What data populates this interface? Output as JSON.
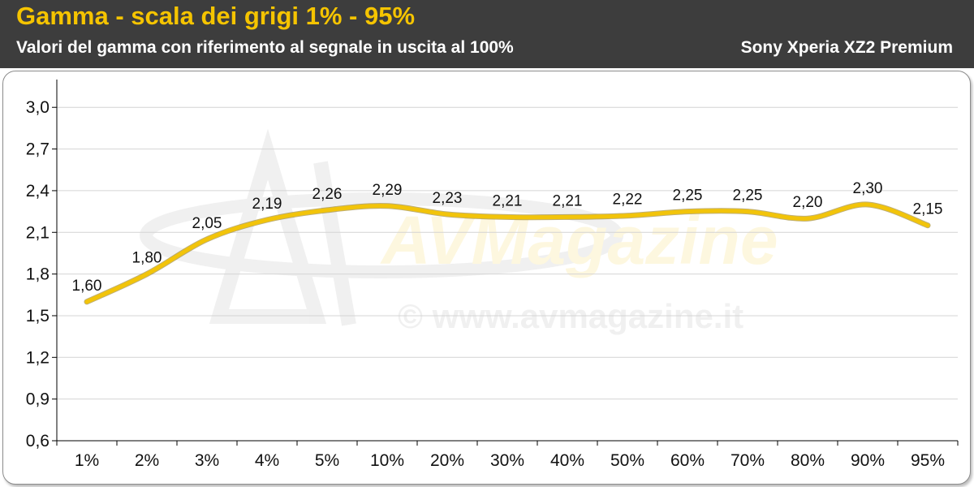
{
  "header": {
    "title": "Gamma - scala dei grigi 1% - 95%",
    "subtitle": "Valori del gamma con riferimento al segnale in uscita al 100%",
    "device": "Sony Xperia XZ2 Premium"
  },
  "watermark": {
    "logo_text": "AVMagazine",
    "url": "© www.avmagazine.it"
  },
  "colors": {
    "header_bg": "#3d3d3d",
    "title": "#f5c400",
    "line": "#f2c40a",
    "line_outline": "#8a6d00",
    "grid": "#d4d4d4"
  },
  "chart_data": {
    "type": "line",
    "categories": [
      "1%",
      "2%",
      "3%",
      "4%",
      "5%",
      "10%",
      "20%",
      "30%",
      "40%",
      "50%",
      "60%",
      "70%",
      "80%",
      "90%",
      "95%"
    ],
    "values": [
      1.6,
      1.8,
      2.05,
      2.19,
      2.26,
      2.29,
      2.23,
      2.21,
      2.21,
      2.22,
      2.25,
      2.25,
      2.2,
      2.3,
      2.15
    ],
    "data_labels": [
      "1,60",
      "1,80",
      "2,05",
      "2,19",
      "2,26",
      "2,29",
      "2,23",
      "2,21",
      "2,21",
      "2,22",
      "2,25",
      "2,25",
      "2,20",
      "2,30",
      "2,15"
    ],
    "ylim": [
      0.6,
      3.2
    ],
    "yticks": [
      0.6,
      0.9,
      1.2,
      1.5,
      1.8,
      2.1,
      2.4,
      2.7,
      3.0
    ],
    "ytick_labels": [
      "0,6",
      "0,9",
      "1,2",
      "1,5",
      "1,8",
      "2,1",
      "2,4",
      "2,7",
      "3,0"
    ],
    "grid": "horizontal",
    "legend": "none"
  }
}
